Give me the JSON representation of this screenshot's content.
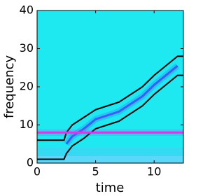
{
  "chart_data": {
    "type": "spectrogram",
    "xlabel": "time",
    "ylabel": "frequency",
    "xlim": [
      0,
      12.5
    ],
    "ylim": [
      0,
      40
    ],
    "xticks": [
      0,
      5,
      10
    ],
    "yticks": [
      0,
      10,
      20,
      30,
      40
    ],
    "background": "#1ee9f1",
    "series": [
      {
        "color": "#000000",
        "x": [
          0,
          2.3,
          2.5,
          3,
          4,
          5,
          6,
          7,
          8,
          9,
          10,
          11,
          12,
          12.5
        ],
        "values": [
          6,
          6,
          8,
          10,
          12,
          14,
          15,
          16,
          18,
          20,
          23,
          25.5,
          28,
          28
        ]
      },
      {
        "color": "#000000",
        "x": [
          0,
          2.3,
          2.5,
          3,
          4,
          5,
          6,
          7,
          8,
          9,
          10,
          11,
          12,
          12.5
        ],
        "values": [
          1,
          1,
          2.5,
          4.5,
          6.5,
          9,
          10,
          11,
          13,
          15,
          18,
          20.5,
          23,
          23
        ]
      },
      {
        "color": "#3a5cff",
        "x": [
          2.5,
          3,
          4,
          5,
          6,
          7,
          8,
          9,
          10,
          11,
          12
        ],
        "values": [
          5,
          7,
          9,
          11.5,
          12.5,
          13.5,
          15.5,
          17.5,
          20.5,
          23,
          25.5
        ]
      },
      {
        "color": "#d23ce6",
        "x": [
          0,
          12.5
        ],
        "values": [
          8,
          8
        ]
      }
    ]
  }
}
